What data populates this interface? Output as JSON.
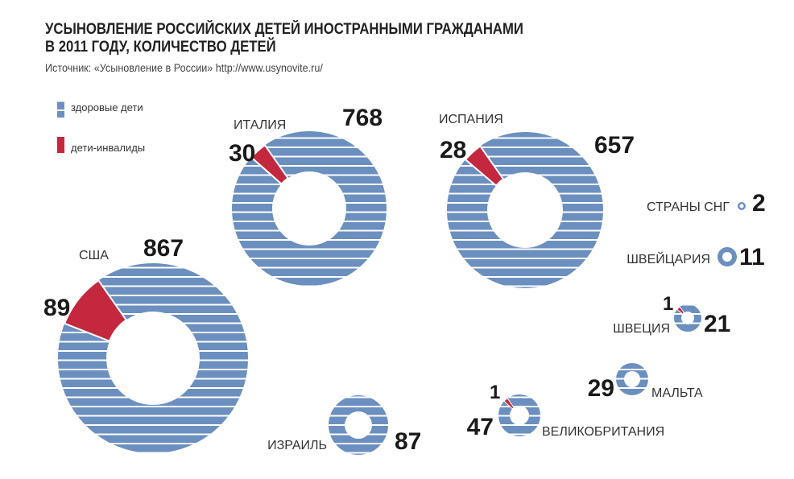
{
  "chart_data": {
    "type": "pie",
    "variant": "donut",
    "title": "УСЫНОВЛЕНИЕ РОССИЙСКИХ ДЕТЕЙ ИНОСТРАННЫМИ ГРАЖДАНАМИ В 2011 ГОДУ, КОЛИЧЕСТВО ДЕТЕЙ",
    "title_lines": [
      "УСЫНОВЛЕНИЕ РОССИЙСКИХ ДЕТЕЙ ИНОСТРАННЫМИ ГРАЖДАНАМИ",
      "В 2011 ГОДУ, КОЛИЧЕСТВО ДЕТЕЙ"
    ],
    "source": "Источник: «Усыновление в России» http://www.usynovite.ru/",
    "legend": [
      {
        "name": "здоровые дети",
        "color": "#6b8fbf"
      },
      {
        "name": "дети-инвалиды",
        "color": "#c4283f"
      }
    ],
    "legend_placement": "top-left",
    "countries": [
      {
        "name": "США",
        "healthy": 867,
        "disabled": 89
      },
      {
        "name": "ИТАЛИЯ",
        "healthy": 768,
        "disabled": 30
      },
      {
        "name": "ИСПАНИЯ",
        "healthy": 657,
        "disabled": 28
      },
      {
        "name": "ИЗРАИЛЬ",
        "healthy": 87,
        "disabled": 0
      },
      {
        "name": "СТРАНЫ СНГ",
        "healthy": 2,
        "disabled": 0
      },
      {
        "name": "ШВЕЙЦАРИЯ",
        "healthy": 11,
        "disabled": 0
      },
      {
        "name": "ШВЕЦИЯ",
        "healthy": 21,
        "disabled": 1
      },
      {
        "name": "МАЛЬТА",
        "healthy": 29,
        "disabled": 0
      },
      {
        "name": "ВЕЛИКОБРИТАНИЯ",
        "healthy": 47,
        "disabled": 1
      }
    ]
  }
}
